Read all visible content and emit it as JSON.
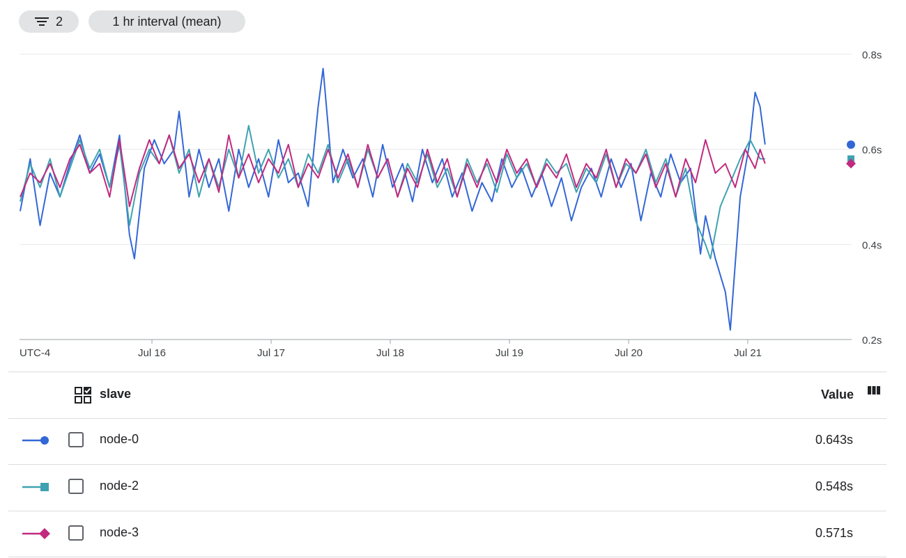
{
  "toolbar": {
    "filter_count": "2",
    "interval_label": "1 hr interval (mean)"
  },
  "table": {
    "group_header": "slave",
    "value_header": "Value",
    "rows": [
      {
        "name": "node-0",
        "value": "0.643s",
        "color": "#3367d6",
        "marker": "circle"
      },
      {
        "name": "node-2",
        "value": "0.548s",
        "color": "#3fa2b0",
        "marker": "square"
      },
      {
        "name": "node-3",
        "value": "0.571s",
        "color": "#c2297f",
        "marker": "diamond"
      }
    ]
  },
  "chart_data": {
    "type": "line",
    "timezone_label": "UTC-4",
    "x_ticks": [
      "Jul 16",
      "Jul 17",
      "Jul 18",
      "Jul 19",
      "Jul 20",
      "Jul 21"
    ],
    "y_ticks": [
      "0.8s",
      "0.6s",
      "0.4s",
      "0.2s"
    ],
    "ylim": [
      0.2,
      0.8
    ],
    "xlim": [
      "2021-07-15 00:00",
      "2021-07-21 22:00"
    ],
    "grid": true,
    "series": [
      {
        "name": "node-0",
        "color": "#3367d6",
        "points": [
          [
            "2021-07-15 00:00",
            0.47
          ],
          [
            "2021-07-15 02:00",
            0.58
          ],
          [
            "2021-07-15 04:00",
            0.44
          ],
          [
            "2021-07-15 06:00",
            0.55
          ],
          [
            "2021-07-15 08:00",
            0.5
          ],
          [
            "2021-07-15 10:00",
            0.57
          ],
          [
            "2021-07-15 12:00",
            0.63
          ],
          [
            "2021-07-15 14:00",
            0.55
          ],
          [
            "2021-07-15 16:00",
            0.59
          ],
          [
            "2021-07-15 18:00",
            0.52
          ],
          [
            "2021-07-15 20:00",
            0.63
          ],
          [
            "2021-07-15 22:00",
            0.42
          ],
          [
            "2021-07-15 23:00",
            0.37
          ],
          [
            "2021-07-16 01:00",
            0.56
          ],
          [
            "2021-07-16 03:00",
            0.62
          ],
          [
            "2021-07-16 05:00",
            0.57
          ],
          [
            "2021-07-16 07:00",
            0.6
          ],
          [
            "2021-07-16 08:00",
            0.68
          ],
          [
            "2021-07-16 10:00",
            0.5
          ],
          [
            "2021-07-16 12:00",
            0.6
          ],
          [
            "2021-07-16 14:00",
            0.52
          ],
          [
            "2021-07-16 16:00",
            0.58
          ],
          [
            "2021-07-16 18:00",
            0.47
          ],
          [
            "2021-07-16 20:00",
            0.6
          ],
          [
            "2021-07-16 22:00",
            0.52
          ],
          [
            "2021-07-17 00:00",
            0.58
          ],
          [
            "2021-07-17 02:00",
            0.5
          ],
          [
            "2021-07-17 04:00",
            0.62
          ],
          [
            "2021-07-17 06:00",
            0.53
          ],
          [
            "2021-07-17 08:00",
            0.55
          ],
          [
            "2021-07-17 10:00",
            0.48
          ],
          [
            "2021-07-17 12:00",
            0.69
          ],
          [
            "2021-07-17 13:00",
            0.77
          ],
          [
            "2021-07-17 15:00",
            0.53
          ],
          [
            "2021-07-17 17:00",
            0.6
          ],
          [
            "2021-07-17 19:00",
            0.54
          ],
          [
            "2021-07-17 21:00",
            0.58
          ],
          [
            "2021-07-17 23:00",
            0.5
          ],
          [
            "2021-07-18 01:00",
            0.61
          ],
          [
            "2021-07-18 03:00",
            0.52
          ],
          [
            "2021-07-18 05:00",
            0.57
          ],
          [
            "2021-07-18 07:00",
            0.49
          ],
          [
            "2021-07-18 09:00",
            0.6
          ],
          [
            "2021-07-18 11:00",
            0.53
          ],
          [
            "2021-07-18 13:00",
            0.58
          ],
          [
            "2021-07-18 15:00",
            0.5
          ],
          [
            "2021-07-18 17:00",
            0.55
          ],
          [
            "2021-07-18 19:00",
            0.47
          ],
          [
            "2021-07-18 21:00",
            0.53
          ],
          [
            "2021-07-18 23:00",
            0.49
          ],
          [
            "2021-07-19 01:00",
            0.58
          ],
          [
            "2021-07-19 03:00",
            0.52
          ],
          [
            "2021-07-19 05:00",
            0.56
          ],
          [
            "2021-07-19 07:00",
            0.5
          ],
          [
            "2021-07-19 09:00",
            0.55
          ],
          [
            "2021-07-19 11:00",
            0.48
          ],
          [
            "2021-07-19 13:00",
            0.54
          ],
          [
            "2021-07-19 15:00",
            0.45
          ],
          [
            "2021-07-19 17:00",
            0.52
          ],
          [
            "2021-07-19 19:00",
            0.56
          ],
          [
            "2021-07-19 21:00",
            0.5
          ],
          [
            "2021-07-19 23:00",
            0.58
          ],
          [
            "2021-07-20 01:00",
            0.52
          ],
          [
            "2021-07-20 03:00",
            0.57
          ],
          [
            "2021-07-20 05:00",
            0.45
          ],
          [
            "2021-07-20 07:00",
            0.55
          ],
          [
            "2021-07-20 09:00",
            0.5
          ],
          [
            "2021-07-20 11:00",
            0.59
          ],
          [
            "2021-07-20 13:00",
            0.53
          ],
          [
            "2021-07-20 15:00",
            0.56
          ],
          [
            "2021-07-20 17:00",
            0.38
          ],
          [
            "2021-07-20 18:00",
            0.46
          ],
          [
            "2021-07-20 20:00",
            0.37
          ],
          [
            "2021-07-20 22:00",
            0.3
          ],
          [
            "2021-07-20 23:00",
            0.22
          ],
          [
            "2021-07-21 01:00",
            0.5
          ],
          [
            "2021-07-21 03:00",
            0.62
          ],
          [
            "2021-07-21 04:00",
            0.72
          ],
          [
            "2021-07-21 05:00",
            0.69
          ],
          [
            "2021-07-21 06:00",
            0.61
          ]
        ]
      },
      {
        "name": "node-2",
        "color": "#3fa2b0",
        "points": [
          [
            "2021-07-15 00:00",
            0.49
          ],
          [
            "2021-07-15 02:00",
            0.57
          ],
          [
            "2021-07-15 04:00",
            0.52
          ],
          [
            "2021-07-15 06:00",
            0.58
          ],
          [
            "2021-07-15 08:00",
            0.5
          ],
          [
            "2021-07-15 10:00",
            0.56
          ],
          [
            "2021-07-15 12:00",
            0.62
          ],
          [
            "2021-07-15 14:00",
            0.56
          ],
          [
            "2021-07-15 16:00",
            0.6
          ],
          [
            "2021-07-15 18:00",
            0.52
          ],
          [
            "2021-07-15 20:00",
            0.61
          ],
          [
            "2021-07-15 22:00",
            0.44
          ],
          [
            "2021-07-16 00:00",
            0.55
          ],
          [
            "2021-07-16 02:00",
            0.6
          ],
          [
            "2021-07-16 04:00",
            0.57
          ],
          [
            "2021-07-16 06:00",
            0.63
          ],
          [
            "2021-07-16 08:00",
            0.55
          ],
          [
            "2021-07-16 10:00",
            0.6
          ],
          [
            "2021-07-16 12:00",
            0.5
          ],
          [
            "2021-07-16 14:00",
            0.58
          ],
          [
            "2021-07-16 16:00",
            0.52
          ],
          [
            "2021-07-16 18:00",
            0.6
          ],
          [
            "2021-07-16 20:00",
            0.54
          ],
          [
            "2021-07-16 22:00",
            0.65
          ],
          [
            "2021-07-17 00:00",
            0.55
          ],
          [
            "2021-07-17 02:00",
            0.6
          ],
          [
            "2021-07-17 04:00",
            0.54
          ],
          [
            "2021-07-17 06:00",
            0.58
          ],
          [
            "2021-07-17 08:00",
            0.52
          ],
          [
            "2021-07-17 10:00",
            0.59
          ],
          [
            "2021-07-17 12:00",
            0.55
          ],
          [
            "2021-07-17 14:00",
            0.61
          ],
          [
            "2021-07-17 16:00",
            0.53
          ],
          [
            "2021-07-17 18:00",
            0.58
          ],
          [
            "2021-07-17 20:00",
            0.52
          ],
          [
            "2021-07-17 22:00",
            0.6
          ],
          [
            "2021-07-18 00:00",
            0.54
          ],
          [
            "2021-07-18 02:00",
            0.58
          ],
          [
            "2021-07-18 04:00",
            0.5
          ],
          [
            "2021-07-18 06:00",
            0.57
          ],
          [
            "2021-07-18 08:00",
            0.53
          ],
          [
            "2021-07-18 10:00",
            0.59
          ],
          [
            "2021-07-18 12:00",
            0.52
          ],
          [
            "2021-07-18 14:00",
            0.56
          ],
          [
            "2021-07-18 16:00",
            0.5
          ],
          [
            "2021-07-18 18:00",
            0.58
          ],
          [
            "2021-07-18 20:00",
            0.53
          ],
          [
            "2021-07-18 22:00",
            0.57
          ],
          [
            "2021-07-19 00:00",
            0.51
          ],
          [
            "2021-07-19 02:00",
            0.59
          ],
          [
            "2021-07-19 04:00",
            0.54
          ],
          [
            "2021-07-19 06:00",
            0.57
          ],
          [
            "2021-07-19 08:00",
            0.52
          ],
          [
            "2021-07-19 10:00",
            0.58
          ],
          [
            "2021-07-19 12:00",
            0.55
          ],
          [
            "2021-07-19 14:00",
            0.57
          ],
          [
            "2021-07-19 16:00",
            0.51
          ],
          [
            "2021-07-19 18:00",
            0.56
          ],
          [
            "2021-07-19 20:00",
            0.53
          ],
          [
            "2021-07-19 22:00",
            0.59
          ],
          [
            "2021-07-20 00:00",
            0.52
          ],
          [
            "2021-07-20 02:00",
            0.57
          ],
          [
            "2021-07-20 04:00",
            0.55
          ],
          [
            "2021-07-20 06:00",
            0.6
          ],
          [
            "2021-07-20 08:00",
            0.53
          ],
          [
            "2021-07-20 10:00",
            0.58
          ],
          [
            "2021-07-20 12:00",
            0.5
          ],
          [
            "2021-07-20 14:00",
            0.56
          ],
          [
            "2021-07-20 16:00",
            0.45
          ],
          [
            "2021-07-20 18:00",
            0.4
          ],
          [
            "2021-07-20 19:00",
            0.37
          ],
          [
            "2021-07-20 21:00",
            0.48
          ],
          [
            "2021-07-20 23:00",
            0.53
          ],
          [
            "2021-07-21 01:00",
            0.58
          ],
          [
            "2021-07-21 03:00",
            0.62
          ],
          [
            "2021-07-21 05:00",
            0.58
          ],
          [
            "2021-07-21 06:00",
            0.58
          ]
        ]
      },
      {
        "name": "node-3",
        "color": "#c2297f",
        "points": [
          [
            "2021-07-15 00:00",
            0.5
          ],
          [
            "2021-07-15 02:00",
            0.55
          ],
          [
            "2021-07-15 04:00",
            0.53
          ],
          [
            "2021-07-15 06:00",
            0.57
          ],
          [
            "2021-07-15 08:00",
            0.52
          ],
          [
            "2021-07-15 10:00",
            0.58
          ],
          [
            "2021-07-15 12:00",
            0.61
          ],
          [
            "2021-07-15 14:00",
            0.55
          ],
          [
            "2021-07-15 16:00",
            0.57
          ],
          [
            "2021-07-15 18:00",
            0.5
          ],
          [
            "2021-07-15 20:00",
            0.62
          ],
          [
            "2021-07-15 22:00",
            0.48
          ],
          [
            "2021-07-16 00:00",
            0.56
          ],
          [
            "2021-07-16 02:00",
            0.62
          ],
          [
            "2021-07-16 04:00",
            0.57
          ],
          [
            "2021-07-16 06:00",
            0.63
          ],
          [
            "2021-07-16 08:00",
            0.56
          ],
          [
            "2021-07-16 10:00",
            0.59
          ],
          [
            "2021-07-16 12:00",
            0.53
          ],
          [
            "2021-07-16 14:00",
            0.58
          ],
          [
            "2021-07-16 16:00",
            0.51
          ],
          [
            "2021-07-16 18:00",
            0.63
          ],
          [
            "2021-07-16 20:00",
            0.54
          ],
          [
            "2021-07-16 22:00",
            0.59
          ],
          [
            "2021-07-17 00:00",
            0.53
          ],
          [
            "2021-07-17 02:00",
            0.58
          ],
          [
            "2021-07-17 04:00",
            0.55
          ],
          [
            "2021-07-17 06:00",
            0.61
          ],
          [
            "2021-07-17 08:00",
            0.52
          ],
          [
            "2021-07-17 10:00",
            0.57
          ],
          [
            "2021-07-17 12:00",
            0.54
          ],
          [
            "2021-07-17 14:00",
            0.6
          ],
          [
            "2021-07-17 16:00",
            0.54
          ],
          [
            "2021-07-17 18:00",
            0.59
          ],
          [
            "2021-07-17 20:00",
            0.52
          ],
          [
            "2021-07-17 22:00",
            0.61
          ],
          [
            "2021-07-18 00:00",
            0.54
          ],
          [
            "2021-07-18 02:00",
            0.58
          ],
          [
            "2021-07-18 04:00",
            0.5
          ],
          [
            "2021-07-18 06:00",
            0.56
          ],
          [
            "2021-07-18 08:00",
            0.52
          ],
          [
            "2021-07-18 10:00",
            0.6
          ],
          [
            "2021-07-18 12:00",
            0.53
          ],
          [
            "2021-07-18 14:00",
            0.58
          ],
          [
            "2021-07-18 16:00",
            0.5
          ],
          [
            "2021-07-18 18:00",
            0.57
          ],
          [
            "2021-07-18 20:00",
            0.52
          ],
          [
            "2021-07-18 22:00",
            0.58
          ],
          [
            "2021-07-19 00:00",
            0.53
          ],
          [
            "2021-07-19 02:00",
            0.6
          ],
          [
            "2021-07-19 04:00",
            0.55
          ],
          [
            "2021-07-19 06:00",
            0.58
          ],
          [
            "2021-07-19 08:00",
            0.52
          ],
          [
            "2021-07-19 10:00",
            0.57
          ],
          [
            "2021-07-19 12:00",
            0.54
          ],
          [
            "2021-07-19 14:00",
            0.59
          ],
          [
            "2021-07-19 16:00",
            0.52
          ],
          [
            "2021-07-19 18:00",
            0.57
          ],
          [
            "2021-07-19 20:00",
            0.54
          ],
          [
            "2021-07-19 22:00",
            0.6
          ],
          [
            "2021-07-20 00:00",
            0.52
          ],
          [
            "2021-07-20 02:00",
            0.58
          ],
          [
            "2021-07-20 04:00",
            0.55
          ],
          [
            "2021-07-20 06:00",
            0.59
          ],
          [
            "2021-07-20 08:00",
            0.52
          ],
          [
            "2021-07-20 10:00",
            0.57
          ],
          [
            "2021-07-20 12:00",
            0.5
          ],
          [
            "2021-07-20 14:00",
            0.58
          ],
          [
            "2021-07-20 16:00",
            0.53
          ],
          [
            "2021-07-20 18:00",
            0.62
          ],
          [
            "2021-07-20 20:00",
            0.55
          ],
          [
            "2021-07-20 22:00",
            0.57
          ],
          [
            "2021-07-21 00:00",
            0.52
          ],
          [
            "2021-07-21 02:00",
            0.6
          ],
          [
            "2021-07-21 04:00",
            0.56
          ],
          [
            "2021-07-21 05:00",
            0.6
          ],
          [
            "2021-07-21 06:00",
            0.57
          ]
        ]
      }
    ]
  }
}
